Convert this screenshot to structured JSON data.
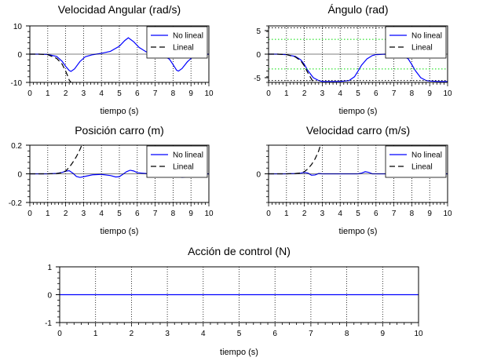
{
  "chart_data": [
    {
      "type": "line",
      "title": "Velocidad Angular (rad/s)",
      "xlabel": "tiempo (s)",
      "xlim": [
        0,
        10
      ],
      "ylim": [
        -10,
        10
      ],
      "xticks": [
        "0",
        "1",
        "2",
        "3",
        "4",
        "5",
        "6",
        "7",
        "8",
        "9",
        "10"
      ],
      "yticks": [
        "-10",
        "0",
        "10"
      ],
      "grid": "vertical-dotted",
      "legend": "top-right",
      "series": [
        {
          "name": "No lineal",
          "color": "#0000ff",
          "dash": "solid",
          "x": [
            0,
            0.5,
            1,
            1.5,
            1.8,
            2,
            2.2,
            2.3,
            2.5,
            2.8,
            3.1,
            3.5,
            4,
            4.5,
            5,
            5.3,
            5.5,
            5.8,
            6.1,
            6.5,
            7,
            7.5,
            7.8,
            8,
            8.2,
            8.3,
            8.5,
            8.8,
            9.1,
            9.5,
            10
          ],
          "y": [
            0,
            0,
            -0.1,
            -0.8,
            -2.5,
            -4.3,
            -5.8,
            -6.1,
            -5.2,
            -2.6,
            -0.9,
            -0.2,
            0.3,
            1,
            2.8,
            4.8,
            5.8,
            4.4,
            2.4,
            0.8,
            0.1,
            -0.6,
            -1.8,
            -3.7,
            -5.7,
            -6,
            -5.1,
            -2.7,
            -1,
            -0.2,
            0
          ]
        },
        {
          "name": "Lineal",
          "color": "#000000",
          "dash": "dashed",
          "x": [
            0,
            0.5,
            1,
            1.5,
            1.8,
            2,
            2.1,
            2.2,
            2.3
          ],
          "y": [
            0,
            0,
            -0.2,
            -1.5,
            -3.5,
            -6,
            -7.5,
            -9.2,
            -10
          ]
        }
      ]
    },
    {
      "type": "line",
      "title": "Ángulo (rad)",
      "xlabel": "tiempo (s)",
      "xlim": [
        0,
        10
      ],
      "ylim": [
        -6,
        6
      ],
      "xticks": [
        "0",
        "1",
        "2",
        "3",
        "4",
        "5",
        "6",
        "7",
        "8",
        "9",
        "10"
      ],
      "yticks": [
        "-5",
        "0",
        "5"
      ],
      "grid": "vertical-dotted",
      "legend": "top-right",
      "series": [
        {
          "name": "No lineal",
          "color": "#0000ff",
          "dash": "solid",
          "x": [
            0,
            0.5,
            1,
            1.5,
            1.8,
            2,
            2.2,
            2.5,
            2.8,
            3,
            3.5,
            4,
            4.5,
            4.8,
            5,
            5.2,
            5.5,
            5.8,
            6,
            6.5,
            7,
            7.5,
            7.8,
            8,
            8.2,
            8.5,
            8.8,
            9,
            9.5,
            10
          ],
          "y": [
            0,
            0,
            -0.1,
            -0.5,
            -1.2,
            -2.2,
            -3.5,
            -5,
            -5.6,
            -5.8,
            -5.8,
            -5.8,
            -5.6,
            -4.8,
            -3.6,
            -2.3,
            -1,
            -0.3,
            -0.1,
            0,
            -0.1,
            -0.3,
            -1,
            -2.2,
            -3.5,
            -5,
            -5.6,
            -5.7,
            -5.8,
            -5.8
          ]
        },
        {
          "name": "Lineal",
          "color": "#000000",
          "dash": "dashed",
          "x": [
            0,
            0.5,
            1,
            1.5,
            1.8,
            2,
            2.2,
            2.4,
            2.5
          ],
          "y": [
            0,
            0,
            -0.1,
            -0.6,
            -1.4,
            -2.5,
            -4,
            -5.3,
            -6
          ]
        },
        {
          "name": "",
          "color": "#00dd00",
          "dash": "dotted",
          "x": [
            0,
            10
          ],
          "y": [
            3.14,
            3.14
          ]
        },
        {
          "name": "",
          "color": "#00dd00",
          "dash": "dotted",
          "x": [
            0,
            10
          ],
          "y": [
            -3.14,
            -3.14
          ]
        },
        {
          "name": "",
          "color": "#000000",
          "dash": "dotted",
          "x": [
            0,
            10
          ],
          "y": [
            5.6,
            5.6
          ]
        },
        {
          "name": "",
          "color": "#000000",
          "dash": "dotted",
          "x": [
            0,
            10
          ],
          "y": [
            -5.6,
            -5.6
          ]
        }
      ]
    },
    {
      "type": "line",
      "title": "Posición carro (m)",
      "xlabel": "tiempo (s)",
      "xlim": [
        0,
        10
      ],
      "ylim": [
        -0.2,
        0.2
      ],
      "xticks": [
        "0",
        "1",
        "2",
        "3",
        "4",
        "5",
        "6",
        "7",
        "8",
        "9",
        "10"
      ],
      "yticks": [
        "-0.2",
        "0",
        "0.2"
      ],
      "grid": "vertical-dotted",
      "legend": "top-right",
      "series": [
        {
          "name": "No lineal",
          "color": "#0000ff",
          "dash": "solid",
          "x": [
            0,
            0.5,
            1,
            1.5,
            1.8,
            2,
            2.2,
            2.4,
            2.6,
            2.8,
            3,
            3.5,
            4,
            4.5,
            4.8,
            5,
            5.2,
            5.4,
            5.6,
            5.8,
            6,
            6.5,
            7,
            7.5,
            8,
            8.3,
            8.5,
            8.8,
            9,
            9.5,
            10
          ],
          "y": [
            0,
            0,
            0,
            0.003,
            0.01,
            0.018,
            0.022,
            0.005,
            -0.018,
            -0.025,
            -0.02,
            -0.007,
            -0.004,
            -0.012,
            -0.022,
            -0.02,
            -0.003,
            0.015,
            0.025,
            0.02,
            0.008,
            0.002,
            0,
            0.005,
            0.01,
            -0.01,
            -0.025,
            -0.02,
            -0.008,
            -0.002,
            0
          ]
        },
        {
          "name": "Lineal",
          "color": "#000000",
          "dash": "dashed",
          "x": [
            0,
            0.5,
            1,
            1.5,
            1.8,
            2,
            2.2,
            2.4,
            2.6,
            2.8,
            2.9
          ],
          "y": [
            0,
            0,
            0,
            0.002,
            0.008,
            0.02,
            0.045,
            0.08,
            0.12,
            0.17,
            0.2
          ]
        }
      ]
    },
    {
      "type": "line",
      "title": "Velocidad carro (m/s)",
      "xlabel": "tiempo (s)",
      "xlim": [
        0,
        10
      ],
      "ylim": [
        -0.2,
        0.2
      ],
      "xticks": [
        "0",
        "1",
        "2",
        "3",
        "4",
        "5",
        "6",
        "7",
        "8",
        "9",
        "10"
      ],
      "yticks": [
        "0"
      ],
      "grid": "vertical-dotted",
      "legend": "top-right",
      "series": [
        {
          "name": "No lineal",
          "color": "#0000ff",
          "dash": "solid",
          "x": [
            0,
            0.5,
            1,
            1.5,
            1.8,
            2,
            2.2,
            2.4,
            2.6,
            2.8,
            3,
            3.5,
            4,
            4.5,
            5,
            5.2,
            5.4,
            5.6,
            5.8,
            6,
            6.5,
            7,
            7.5,
            8,
            8.1,
            8.3,
            8.5,
            8.7,
            9,
            9.5,
            10
          ],
          "y": [
            0,
            0,
            0,
            0.002,
            0.005,
            0.01,
            0.005,
            -0.01,
            -0.008,
            0.002,
            0,
            0,
            0,
            0,
            0,
            0.005,
            0.015,
            0.01,
            0,
            0,
            0,
            0,
            0,
            0,
            -0.005,
            -0.02,
            -0.015,
            0,
            0,
            0,
            0
          ]
        },
        {
          "name": "Lineal",
          "color": "#000000",
          "dash": "dashed",
          "x": [
            0,
            0.5,
            1,
            1.5,
            1.8,
            2,
            2.2,
            2.4,
            2.6,
            2.8,
            2.9
          ],
          "y": [
            0,
            0,
            0,
            0.002,
            0.006,
            0.015,
            0.035,
            0.065,
            0.105,
            0.16,
            0.2
          ]
        }
      ]
    },
    {
      "type": "line",
      "title": "Acción de control (N)",
      "xlabel": "tiempo (s)",
      "xlim": [
        0,
        10
      ],
      "ylim": [
        -1,
        1
      ],
      "xticks": [
        "0",
        "1",
        "2",
        "3",
        "4",
        "5",
        "6",
        "7",
        "8",
        "9",
        "10"
      ],
      "yticks": [
        "-1",
        "0",
        "1"
      ],
      "grid": "vertical-dotted",
      "legend": "none",
      "series": [
        {
          "name": "",
          "color": "#0000ff",
          "dash": "solid",
          "x": [
            0,
            10
          ],
          "y": [
            0,
            0
          ]
        }
      ]
    }
  ]
}
